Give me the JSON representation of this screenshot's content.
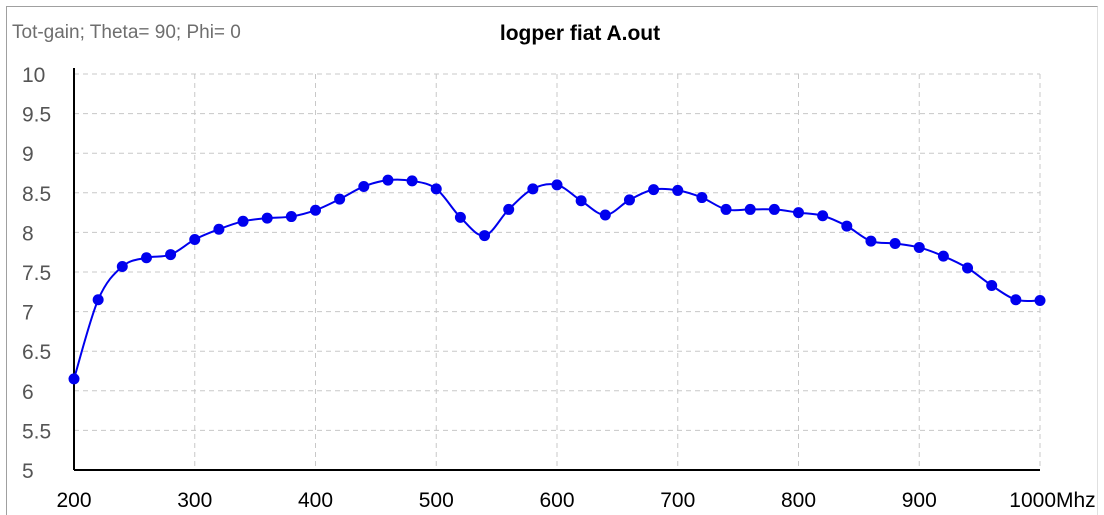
{
  "chart_data": {
    "type": "line",
    "title": "logper fiat A.out",
    "subtitle": "Tot-gain; Theta= 90; Phi= 0",
    "xlabel": "Mhz",
    "ylabel": "",
    "xlim": [
      200,
      1000
    ],
    "ylim": [
      5,
      10
    ],
    "xticks": [
      200,
      300,
      400,
      500,
      600,
      700,
      800,
      900,
      1000
    ],
    "xtick_labels": [
      "200",
      "300",
      "400",
      "500",
      "600",
      "700",
      "800",
      "900",
      "1000"
    ],
    "yticks": [
      5,
      5.5,
      6,
      6.5,
      7,
      7.5,
      8,
      8.5,
      9,
      9.5,
      10
    ],
    "ytick_labels": [
      "5",
      "5.5",
      "6",
      "6.5",
      "7",
      "7.5",
      "8",
      "8.5",
      "9",
      "9.5",
      "10"
    ],
    "grid": true,
    "series": [
      {
        "color": "#0000ee",
        "marker": "circle",
        "x": [
          200,
          220,
          240,
          260,
          280,
          300,
          320,
          340,
          360,
          380,
          400,
          420,
          440,
          460,
          480,
          500,
          520,
          540,
          560,
          580,
          600,
          620,
          640,
          660,
          680,
          700,
          720,
          740,
          760,
          780,
          800,
          820,
          840,
          860,
          880,
          900,
          920,
          940,
          960,
          980,
          1000
        ],
        "y": [
          6.15,
          7.15,
          7.57,
          7.68,
          7.72,
          7.91,
          8.04,
          8.14,
          8.18,
          8.2,
          8.28,
          8.42,
          8.58,
          8.66,
          8.65,
          8.55,
          8.19,
          7.96,
          8.29,
          8.55,
          8.6,
          8.4,
          8.22,
          8.41,
          8.54,
          8.53,
          8.44,
          8.29,
          8.29,
          8.29,
          8.25,
          8.21,
          8.08,
          7.89,
          7.86,
          7.81,
          7.7,
          7.55,
          7.33,
          7.15,
          7.14
        ]
      }
    ]
  }
}
